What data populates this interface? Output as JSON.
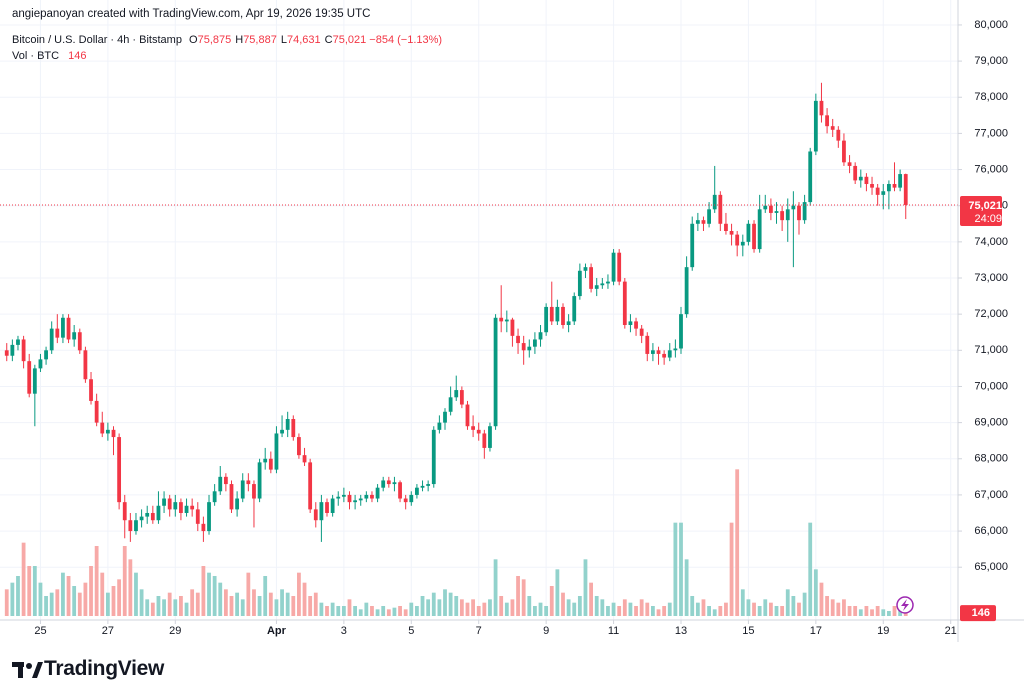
{
  "header": {
    "attribution": "angiepanoyan created with TradingView.com, Apr 19, 2026 19:35 UTC",
    "brand": "TradingView"
  },
  "chart_data": {
    "type": "candlestick",
    "symbol": "Bitcoin / U.S. Dollar · 4h · Bitstamp",
    "ohlc_legend": [
      {
        "key": "O",
        "value": "75,875"
      },
      {
        "key": "H",
        "value": "75,887"
      },
      {
        "key": "L",
        "value": "74,631"
      },
      {
        "key": "C",
        "value": "75,021"
      }
    ],
    "change": "−854 (−1.13%)",
    "volume_legend": {
      "label": "Vol · BTC",
      "value": "146"
    },
    "price_tag": {
      "value": "75,021",
      "countdown": "24:09"
    },
    "volume_tag": "146",
    "up_color": "#089981",
    "down_color": "#f23645",
    "volume_up_color": "#92d2cc",
    "volume_down_color": "#f7a9a7",
    "grid": true,
    "xlim": [
      -1.2,
      169.3
    ],
    "xticks": [
      {
        "value": 6,
        "label": "25"
      },
      {
        "value": 18,
        "label": "27"
      },
      {
        "value": 30,
        "label": "29"
      },
      {
        "value": 48,
        "label": "Apr"
      },
      {
        "value": 60,
        "label": "3"
      },
      {
        "value": 72,
        "label": "5"
      },
      {
        "value": 84,
        "label": "7"
      },
      {
        "value": 96,
        "label": "9"
      },
      {
        "value": 108,
        "label": "11"
      },
      {
        "value": 120,
        "label": "13"
      },
      {
        "value": 132,
        "label": "15"
      },
      {
        "value": 144,
        "label": "17"
      },
      {
        "value": 156,
        "label": "19"
      },
      {
        "value": 168,
        "label": "21"
      }
    ],
    "ylim": [
      63540,
      80690
    ],
    "yticks": [
      {
        "value": 80000,
        "label": "80,000"
      },
      {
        "value": 79000,
        "label": "79,000"
      },
      {
        "value": 78000,
        "label": "78,000"
      },
      {
        "value": 77000,
        "label": "77,000"
      },
      {
        "value": 76000,
        "label": "76,000"
      },
      {
        "value": 75000,
        "label": "75,000"
      },
      {
        "value": 74000,
        "label": "74,000"
      },
      {
        "value": 73000,
        "label": "73,000"
      },
      {
        "value": 72000,
        "label": "72,000"
      },
      {
        "value": 71000,
        "label": "71,000"
      },
      {
        "value": 70000,
        "label": "70,000"
      },
      {
        "value": 69000,
        "label": "69,000"
      },
      {
        "value": 68000,
        "label": "68,000"
      },
      {
        "value": 67000,
        "label": "67,000"
      },
      {
        "value": 66000,
        "label": "66,000"
      },
      {
        "value": 65000,
        "label": "65,000"
      }
    ],
    "volume_ylim": [
      0,
      4800
    ],
    "candles": [
      [
        71000,
        71200,
        70700,
        70850
      ],
      [
        70850,
        71300,
        70700,
        71150
      ],
      [
        71150,
        71400,
        71000,
        71300
      ],
      [
        71300,
        71400,
        70500,
        70700
      ],
      [
        70700,
        70900,
        69700,
        69800
      ],
      [
        69800,
        70600,
        68900,
        70500
      ],
      [
        70500,
        70900,
        70400,
        70750
      ],
      [
        70750,
        71100,
        70600,
        71000
      ],
      [
        71000,
        71800,
        70900,
        71600
      ],
      [
        71600,
        72000,
        71200,
        71350
      ],
      [
        71350,
        72000,
        71200,
        71900
      ],
      [
        71900,
        72000,
        71200,
        71300
      ],
      [
        71300,
        71700,
        71100,
        71500
      ],
      [
        71500,
        71600,
        70900,
        71000
      ],
      [
        71000,
        71100,
        70100,
        70200
      ],
      [
        70200,
        70400,
        69500,
        69600
      ],
      [
        69600,
        69800,
        68900,
        69000
      ],
      [
        69000,
        69300,
        68600,
        68700
      ],
      [
        68700,
        69000,
        68500,
        68800
      ],
      [
        68800,
        68900,
        68100,
        68600
      ],
      [
        68600,
        68700,
        66600,
        66800
      ],
      [
        66800,
        67000,
        65800,
        66300
      ],
      [
        66300,
        66500,
        65700,
        66000
      ],
      [
        66000,
        66500,
        65900,
        66300
      ],
      [
        66300,
        66600,
        66100,
        66400
      ],
      [
        66400,
        66700,
        66200,
        66500
      ],
      [
        66500,
        66700,
        66200,
        66300
      ],
      [
        66300,
        67100,
        66200,
        66700
      ],
      [
        66700,
        67100,
        66500,
        66900
      ],
      [
        66900,
        67000,
        66400,
        66600
      ],
      [
        66600,
        67000,
        66400,
        66800
      ],
      [
        66800,
        66900,
        66300,
        66500
      ],
      [
        66500,
        66900,
        66400,
        66700
      ],
      [
        66700,
        66900,
        66400,
        66600
      ],
      [
        66600,
        66800,
        66000,
        66200
      ],
      [
        66200,
        66400,
        65700,
        66000
      ],
      [
        66000,
        67000,
        65900,
        66800
      ],
      [
        66800,
        67300,
        66700,
        67100
      ],
      [
        67100,
        67800,
        67000,
        67500
      ],
      [
        67500,
        67600,
        67100,
        67300
      ],
      [
        67300,
        67400,
        66500,
        66600
      ],
      [
        66600,
        67100,
        66400,
        66900
      ],
      [
        66900,
        67600,
        66800,
        67400
      ],
      [
        67400,
        67600,
        67100,
        67300
      ],
      [
        67300,
        67400,
        66100,
        66900
      ],
      [
        66900,
        68000,
        66800,
        67900
      ],
      [
        67900,
        68300,
        67700,
        68000
      ],
      [
        68000,
        68200,
        67600,
        67700
      ],
      [
        67700,
        68900,
        67600,
        68700
      ],
      [
        68700,
        69200,
        68600,
        68800
      ],
      [
        68800,
        69300,
        68600,
        69100
      ],
      [
        69100,
        69200,
        68500,
        68600
      ],
      [
        68600,
        68700,
        68000,
        68100
      ],
      [
        68100,
        68300,
        67800,
        67900
      ],
      [
        67900,
        68000,
        66500,
        66600
      ],
      [
        66600,
        66800,
        66100,
        66300
      ],
      [
        66300,
        67000,
        65700,
        66800
      ],
      [
        66800,
        66900,
        66400,
        66500
      ],
      [
        66500,
        67000,
        66400,
        66900
      ],
      [
        66900,
        67100,
        66700,
        66950
      ],
      [
        66950,
        67200,
        66800,
        67000
      ],
      [
        67000,
        67100,
        66600,
        66800
      ],
      [
        66800,
        67000,
        66600,
        66850
      ],
      [
        66850,
        67000,
        66700,
        66900
      ],
      [
        66900,
        67100,
        66800,
        67000
      ],
      [
        67000,
        67100,
        66800,
        66900
      ],
      [
        66900,
        67300,
        66800,
        67200
      ],
      [
        67200,
        67500,
        67100,
        67400
      ],
      [
        67400,
        67500,
        67200,
        67300
      ],
      [
        67300,
        67500,
        67100,
        67350
      ],
      [
        67350,
        67400,
        66800,
        66900
      ],
      [
        66900,
        67000,
        66600,
        66800
      ],
      [
        66800,
        67100,
        66700,
        67000
      ],
      [
        67000,
        67300,
        66900,
        67200
      ],
      [
        67200,
        67400,
        67100,
        67250
      ],
      [
        67250,
        67400,
        67100,
        67300
      ],
      [
        67300,
        68900,
        67200,
        68800
      ],
      [
        68800,
        69200,
        68700,
        69000
      ],
      [
        69000,
        69400,
        68800,
        69300
      ],
      [
        69300,
        70000,
        69200,
        69700
      ],
      [
        69700,
        70300,
        69600,
        69900
      ],
      [
        69900,
        70000,
        69400,
        69500
      ],
      [
        69500,
        69600,
        68800,
        68900
      ],
      [
        68900,
        69200,
        68600,
        68800
      ],
      [
        68800,
        69000,
        68500,
        68700
      ],
      [
        68700,
        68800,
        68000,
        68300
      ],
      [
        68300,
        69000,
        68200,
        68900
      ],
      [
        68900,
        72000,
        68800,
        71900
      ],
      [
        71900,
        72800,
        71500,
        71800
      ],
      [
        71800,
        72100,
        71500,
        71850
      ],
      [
        71850,
        71900,
        71100,
        71400
      ],
      [
        71400,
        71600,
        70900,
        71200
      ],
      [
        71200,
        71400,
        70600,
        71000
      ],
      [
        71000,
        71300,
        70800,
        71100
      ],
      [
        71100,
        71500,
        70900,
        71300
      ],
      [
        71300,
        71700,
        71100,
        71500
      ],
      [
        71500,
        72300,
        71400,
        72200
      ],
      [
        72200,
        72900,
        71700,
        71800
      ],
      [
        71800,
        72400,
        71700,
        72200
      ],
      [
        72200,
        72300,
        71600,
        71700
      ],
      [
        71700,
        72000,
        71500,
        71800
      ],
      [
        71800,
        72600,
        71700,
        72500
      ],
      [
        72500,
        73400,
        72400,
        73200
      ],
      [
        73200,
        73400,
        73000,
        73300
      ],
      [
        73300,
        73400,
        72600,
        72700
      ],
      [
        72700,
        73000,
        72500,
        72800
      ],
      [
        72800,
        73000,
        72700,
        72850
      ],
      [
        72850,
        73100,
        72700,
        72900
      ],
      [
        72900,
        73800,
        72800,
        73700
      ],
      [
        73700,
        73800,
        72800,
        72900
      ],
      [
        72900,
        73000,
        71600,
        71700
      ],
      [
        71700,
        72000,
        71500,
        71800
      ],
      [
        71800,
        71900,
        71400,
        71600
      ],
      [
        71600,
        71700,
        71200,
        71400
      ],
      [
        71400,
        71500,
        70700,
        70900
      ],
      [
        70900,
        71200,
        70700,
        71000
      ],
      [
        71000,
        71100,
        70600,
        70900
      ],
      [
        70900,
        71000,
        70600,
        70800
      ],
      [
        70800,
        71200,
        70700,
        71000
      ],
      [
        71000,
        71300,
        70800,
        71050
      ],
      [
        71050,
        72200,
        70900,
        72000
      ],
      [
        72000,
        73600,
        71900,
        73300
      ],
      [
        73300,
        74700,
        73200,
        74500
      ],
      [
        74500,
        74800,
        74300,
        74600
      ],
      [
        74600,
        74700,
        74300,
        74500
      ],
      [
        74500,
        75100,
        74400,
        74900
      ],
      [
        74900,
        76100,
        74800,
        75300
      ],
      [
        75300,
        75400,
        74300,
        74500
      ],
      [
        74500,
        74800,
        74200,
        74300
      ],
      [
        74300,
        74500,
        73900,
        74200
      ],
      [
        74200,
        74300,
        73600,
        73900
      ],
      [
        73900,
        74200,
        73600,
        74000
      ],
      [
        74000,
        74600,
        73900,
        74500
      ],
      [
        74500,
        74600,
        73700,
        73800
      ],
      [
        73800,
        75300,
        73700,
        74900
      ],
      [
        74900,
        75300,
        74800,
        75000
      ],
      [
        75000,
        75200,
        74600,
        74800
      ],
      [
        74800,
        75100,
        74500,
        74850
      ],
      [
        74850,
        75000,
        74300,
        74600
      ],
      [
        74600,
        75200,
        74000,
        74900
      ],
      [
        74900,
        75400,
        73300,
        75000
      ],
      [
        75000,
        75100,
        74200,
        74600
      ],
      [
        74600,
        75300,
        74500,
        75100
      ],
      [
        75100,
        76600,
        75000,
        76500
      ],
      [
        76500,
        78100,
        76400,
        77900
      ],
      [
        77900,
        78400,
        77300,
        77500
      ],
      [
        77500,
        77700,
        77000,
        77200
      ],
      [
        77200,
        77400,
        76900,
        77100
      ],
      [
        77100,
        77200,
        76600,
        76800
      ],
      [
        76800,
        77000,
        76100,
        76200
      ],
      [
        76200,
        76400,
        75900,
        76100
      ],
      [
        76100,
        76200,
        75600,
        75700
      ],
      [
        75700,
        76000,
        75500,
        75800
      ],
      [
        75800,
        75900,
        75400,
        75600
      ],
      [
        75600,
        75800,
        75300,
        75500
      ],
      [
        75500,
        75600,
        75000,
        75300
      ],
      [
        75300,
        75600,
        74900,
        75400
      ],
      [
        75400,
        75700,
        74900,
        75600
      ],
      [
        75600,
        76200,
        75400,
        75500
      ],
      [
        75500,
        76000,
        75400,
        75875
      ],
      [
        75875,
        75887,
        74631,
        75021
      ]
    ],
    "volume": [
      800,
      1000,
      1200,
      2200,
      1500,
      1500,
      1000,
      600,
      700,
      800,
      1300,
      1200,
      900,
      700,
      1000,
      1500,
      2100,
      1300,
      700,
      900,
      1100,
      2100,
      1700,
      1300,
      800,
      500,
      400,
      600,
      500,
      700,
      500,
      600,
      400,
      800,
      700,
      1500,
      1300,
      1200,
      1000,
      800,
      600,
      700,
      500,
      1300,
      800,
      600,
      1200,
      700,
      500,
      800,
      700,
      600,
      1300,
      1000,
      600,
      700,
      400,
      300,
      400,
      300,
      300,
      500,
      300,
      200,
      400,
      300,
      200,
      300,
      200,
      250,
      300,
      200,
      400,
      300,
      600,
      500,
      700,
      500,
      800,
      700,
      600,
      500,
      400,
      500,
      300,
      400,
      500,
      1700,
      600,
      400,
      500,
      1200,
      1100,
      600,
      300,
      400,
      300,
      900,
      1400,
      700,
      500,
      400,
      600,
      1700,
      1000,
      600,
      500,
      300,
      400,
      300,
      500,
      400,
      300,
      500,
      400,
      300,
      200,
      300,
      400,
      2800,
      2800,
      1700,
      600,
      400,
      500,
      300,
      200,
      300,
      400,
      2800,
      4400,
      800,
      500,
      400,
      300,
      500,
      400,
      300,
      300,
      800,
      600,
      400,
      700,
      2800,
      1400,
      1000,
      600,
      500,
      400,
      500,
      300,
      300,
      200,
      300,
      200,
      300,
      200,
      150,
      300,
      400,
      146
    ]
  }
}
